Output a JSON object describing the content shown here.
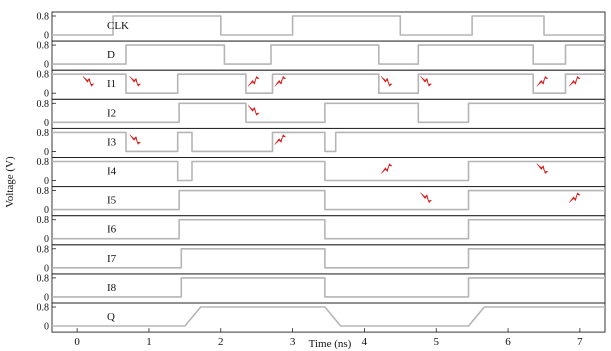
{
  "chart_data": {
    "type": "line",
    "xlabel": "Time (ns)",
    "ylabel": "Voltage (V)",
    "xlim": [
      -0.35,
      7.35
    ],
    "xticks": [
      "0",
      "1",
      "2",
      "3",
      "4",
      "5",
      "6",
      "7"
    ],
    "ytick_labels": [
      "0.8",
      "0"
    ],
    "ylim": [
      0,
      0.8
    ],
    "grid": false,
    "line_color": "#b5b5b5",
    "glitch_color": "#e81c1c",
    "glitch_marker_icon": "lightning-bolt-icon",
    "series": [
      {
        "name": "CLK",
        "points": [
          [
            -0.35,
            0
          ],
          [
            0.5,
            0
          ],
          [
            0.5,
            0.8
          ],
          [
            2.0,
            0.8
          ],
          [
            2.0,
            0
          ],
          [
            3.0,
            0
          ],
          [
            3.0,
            0.8
          ],
          [
            4.5,
            0.8
          ],
          [
            4.5,
            0
          ],
          [
            5.5,
            0
          ],
          [
            5.5,
            0.8
          ],
          [
            6.5,
            0.8
          ],
          [
            6.5,
            0
          ],
          [
            7.35,
            0
          ]
        ],
        "glitches": []
      },
      {
        "name": "D",
        "points": [
          [
            -0.35,
            0
          ],
          [
            0.68,
            0
          ],
          [
            0.68,
            0.8
          ],
          [
            2.05,
            0.8
          ],
          [
            2.05,
            0
          ],
          [
            2.7,
            0
          ],
          [
            2.7,
            0.8
          ],
          [
            4.2,
            0.8
          ],
          [
            4.2,
            0
          ],
          [
            4.75,
            0
          ],
          [
            4.75,
            0.8
          ],
          [
            6.35,
            0.8
          ],
          [
            6.35,
            0
          ],
          [
            6.8,
            0
          ],
          [
            6.8,
            0.8
          ],
          [
            7.35,
            0.8
          ]
        ],
        "glitches": []
      },
      {
        "name": "I1",
        "points": [
          [
            -0.35,
            0.8
          ],
          [
            0.68,
            0.8
          ],
          [
            0.68,
            0
          ],
          [
            1.4,
            0
          ],
          [
            1.4,
            0.8
          ],
          [
            2.35,
            0.8
          ],
          [
            2.35,
            0
          ],
          [
            2.72,
            0
          ],
          [
            2.72,
            0.8
          ],
          [
            4.2,
            0.8
          ],
          [
            4.2,
            0
          ],
          [
            4.75,
            0
          ],
          [
            4.75,
            0.8
          ],
          [
            6.35,
            0.8
          ],
          [
            6.35,
            0
          ],
          [
            6.8,
            0
          ],
          [
            6.8,
            0.8
          ],
          [
            7.35,
            0.8
          ]
        ],
        "glitches": [
          [
            0.15,
            0.5,
            "down"
          ],
          [
            0.8,
            0.5,
            "down"
          ],
          [
            2.45,
            0.5,
            "up"
          ],
          [
            2.82,
            0.5,
            "up"
          ],
          [
            4.3,
            0.5,
            "down"
          ],
          [
            4.85,
            0.5,
            "down"
          ],
          [
            6.47,
            0.5,
            "up"
          ],
          [
            6.92,
            0.5,
            "up"
          ]
        ]
      },
      {
        "name": "I2",
        "points": [
          [
            -0.35,
            0
          ],
          [
            1.42,
            0
          ],
          [
            1.42,
            0.8
          ],
          [
            2.35,
            0.8
          ],
          [
            2.35,
            0
          ],
          [
            3.45,
            0
          ],
          [
            3.45,
            0.8
          ],
          [
            4.75,
            0.8
          ],
          [
            4.75,
            0
          ],
          [
            5.45,
            0
          ],
          [
            5.45,
            0.8
          ],
          [
            7.35,
            0.8
          ]
        ],
        "glitches": [
          [
            2.45,
            0.5,
            "down"
          ]
        ]
      },
      {
        "name": "I3",
        "points": [
          [
            -0.35,
            0.8
          ],
          [
            0.68,
            0.8
          ],
          [
            0.68,
            0
          ],
          [
            1.4,
            0
          ],
          [
            1.4,
            0.8
          ],
          [
            1.6,
            0.8
          ],
          [
            1.6,
            0
          ],
          [
            2.72,
            0
          ],
          [
            2.72,
            0.8
          ],
          [
            3.45,
            0.8
          ],
          [
            3.45,
            0
          ],
          [
            3.6,
            0
          ],
          [
            3.6,
            0.8
          ],
          [
            7.35,
            0.8
          ]
        ],
        "glitches": [
          [
            0.8,
            0.5,
            "down"
          ],
          [
            2.82,
            0.5,
            "up"
          ]
        ]
      },
      {
        "name": "I4",
        "points": [
          [
            -0.35,
            0.8
          ],
          [
            1.4,
            0.8
          ],
          [
            1.4,
            0
          ],
          [
            1.6,
            0
          ],
          [
            1.6,
            0.8
          ],
          [
            3.45,
            0.8
          ],
          [
            3.45,
            0
          ],
          [
            5.45,
            0
          ],
          [
            5.45,
            0.8
          ],
          [
            7.35,
            0.8
          ]
        ],
        "glitches": [
          [
            4.3,
            0.5,
            "up"
          ],
          [
            6.47,
            0.5,
            "down"
          ]
        ]
      },
      {
        "name": "I5",
        "points": [
          [
            -0.35,
            0
          ],
          [
            1.42,
            0
          ],
          [
            1.42,
            0.8
          ],
          [
            3.45,
            0.8
          ],
          [
            3.45,
            0
          ],
          [
            5.45,
            0
          ],
          [
            5.45,
            0.8
          ],
          [
            7.35,
            0.8
          ]
        ],
        "glitches": [
          [
            4.85,
            0.5,
            "down"
          ],
          [
            6.92,
            0.5,
            "up"
          ]
        ]
      },
      {
        "name": "I6",
        "points": [
          [
            -0.35,
            0
          ],
          [
            1.42,
            0
          ],
          [
            1.42,
            0.8
          ],
          [
            3.45,
            0.8
          ],
          [
            3.45,
            0
          ],
          [
            5.45,
            0
          ],
          [
            5.45,
            0.8
          ],
          [
            7.35,
            0.8
          ]
        ],
        "glitches": []
      },
      {
        "name": "I7",
        "points": [
          [
            -0.35,
            0
          ],
          [
            1.45,
            0
          ],
          [
            1.45,
            0.8
          ],
          [
            3.45,
            0.8
          ],
          [
            3.45,
            0
          ],
          [
            5.45,
            0
          ],
          [
            5.45,
            0.8
          ],
          [
            7.35,
            0.8
          ]
        ],
        "glitches": []
      },
      {
        "name": "I8",
        "points": [
          [
            -0.35,
            0
          ],
          [
            1.45,
            0
          ],
          [
            1.45,
            0.8
          ],
          [
            3.45,
            0.8
          ],
          [
            3.45,
            0
          ],
          [
            5.45,
            0
          ],
          [
            5.45,
            0.8
          ],
          [
            7.35,
            0.8
          ]
        ],
        "glitches": []
      },
      {
        "name": "Q",
        "points": [
          [
            -0.35,
            0
          ],
          [
            1.5,
            0
          ],
          [
            1.72,
            0.8
          ],
          [
            3.45,
            0.8
          ],
          [
            3.67,
            0
          ],
          [
            5.45,
            0
          ],
          [
            5.67,
            0.8
          ],
          [
            7.35,
            0.8
          ]
        ],
        "glitches": []
      }
    ]
  }
}
